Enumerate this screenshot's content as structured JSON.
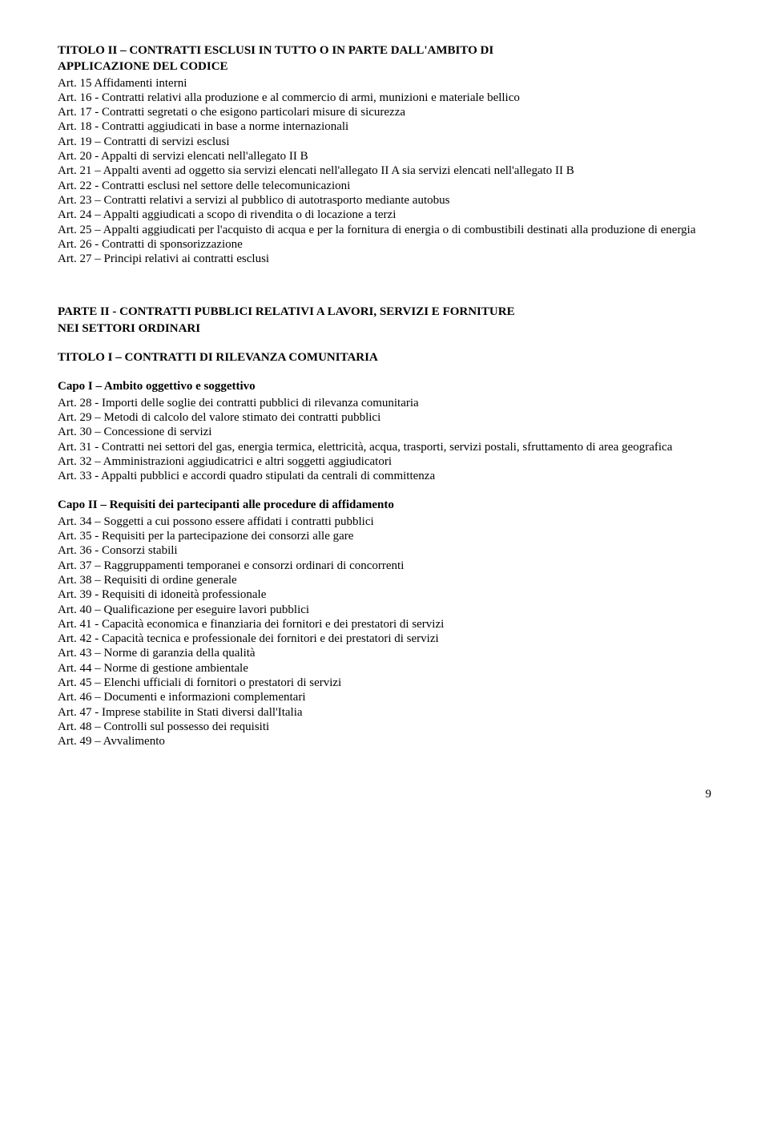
{
  "titolo2": {
    "heading_l1": "TITOLO II – CONTRATTI ESCLUSI IN TUTTO O IN PARTE DALL'AMBITO DI",
    "heading_l2": "APPLICAZIONE DEL CODICE",
    "articles": [
      "Art. 15 Affidamenti interni",
      "Art. 16 - Contratti relativi alla produzione e al commercio di armi, munizioni e materiale bellico",
      "Art. 17 - Contratti segretati o che esigono particolari misure di sicurezza",
      "Art. 18 - Contratti aggiudicati in base a norme internazionali",
      "Art. 19 – Contratti di servizi esclusi",
      "Art. 20 - Appalti di servizi elencati nell'allegato II B",
      "Art. 21 – Appalti aventi ad oggetto sia servizi elencati nell'allegato II A sia servizi elencati nell'allegato II B",
      "Art. 22 - Contratti esclusi nel settore delle telecomunicazioni",
      "Art. 23 – Contratti relativi a servizi al pubblico di autotrasporto mediante autobus",
      "Art. 24 – Appalti aggiudicati a scopo di rivendita o di locazione a terzi",
      "Art. 25 – Appalti aggiudicati per l'acquisto di acqua e per la fornitura di energia o di combustibili destinati alla produzione di energia",
      "Art. 26 - Contratti di sponsorizzazione",
      "Art. 27 – Principi relativi ai contratti esclusi"
    ]
  },
  "parte2": {
    "heading_l1": "PARTE II  -  CONTRATTI PUBBLICI RELATIVI A LAVORI, SERVIZI E FORNITURE",
    "heading_l2": "NEI SETTORI ORDINARI"
  },
  "titolo1": {
    "heading": "TITOLO I – CONTRATTI DI RILEVANZA COMUNITARIA"
  },
  "capo1": {
    "heading": "Capo I – Ambito oggettivo e soggettivo",
    "articles": [
      "Art. 28 - Importi delle soglie dei contratti pubblici di rilevanza comunitaria",
      "Art. 29 – Metodi di calcolo del valore stimato dei contratti pubblici",
      "Art. 30 – Concessione di servizi",
      "Art. 31 - Contratti nei settori del gas, energia termica, elettricità, acqua, trasporti, servizi postali, sfruttamento di area geografica",
      "Art. 32 – Amministrazioni aggiudicatrici e altri soggetti aggiudicatori",
      "Art. 33 - Appalti pubblici e accordi quadro stipulati da centrali di committenza"
    ]
  },
  "capo2": {
    "heading": "Capo II – Requisiti dei partecipanti alle procedure di affidamento",
    "articles": [
      "Art. 34 – Soggetti a cui possono essere affidati i contratti pubblici",
      "Art. 35 - Requisiti per la partecipazione dei consorzi alle gare",
      "Art. 36 - Consorzi stabili",
      "Art. 37 – Raggruppamenti temporanei e consorzi ordinari di concorrenti",
      "Art. 38 – Requisiti di ordine generale",
      "Art. 39 - Requisiti di idoneità professionale",
      "Art. 40 – Qualificazione per eseguire lavori pubblici",
      "Art. 41 - Capacità economica e finanziaria dei fornitori e dei prestatori di servizi",
      "Art. 42 - Capacità tecnica e professionale dei fornitori e dei prestatori di servizi",
      "Art. 43 – Norme di garanzia della qualità",
      "Art. 44 – Norme di gestione ambientale",
      "Art. 45 – Elenchi ufficiali di fornitori o prestatori di servizi",
      "Art. 46 – Documenti e informazioni complementari",
      "Art. 47 - Imprese stabilite in Stati diversi dall'Italia",
      "Art. 48 – Controlli sul possesso dei requisiti",
      "Art. 49 – Avvalimento"
    ]
  },
  "page_number": "9"
}
